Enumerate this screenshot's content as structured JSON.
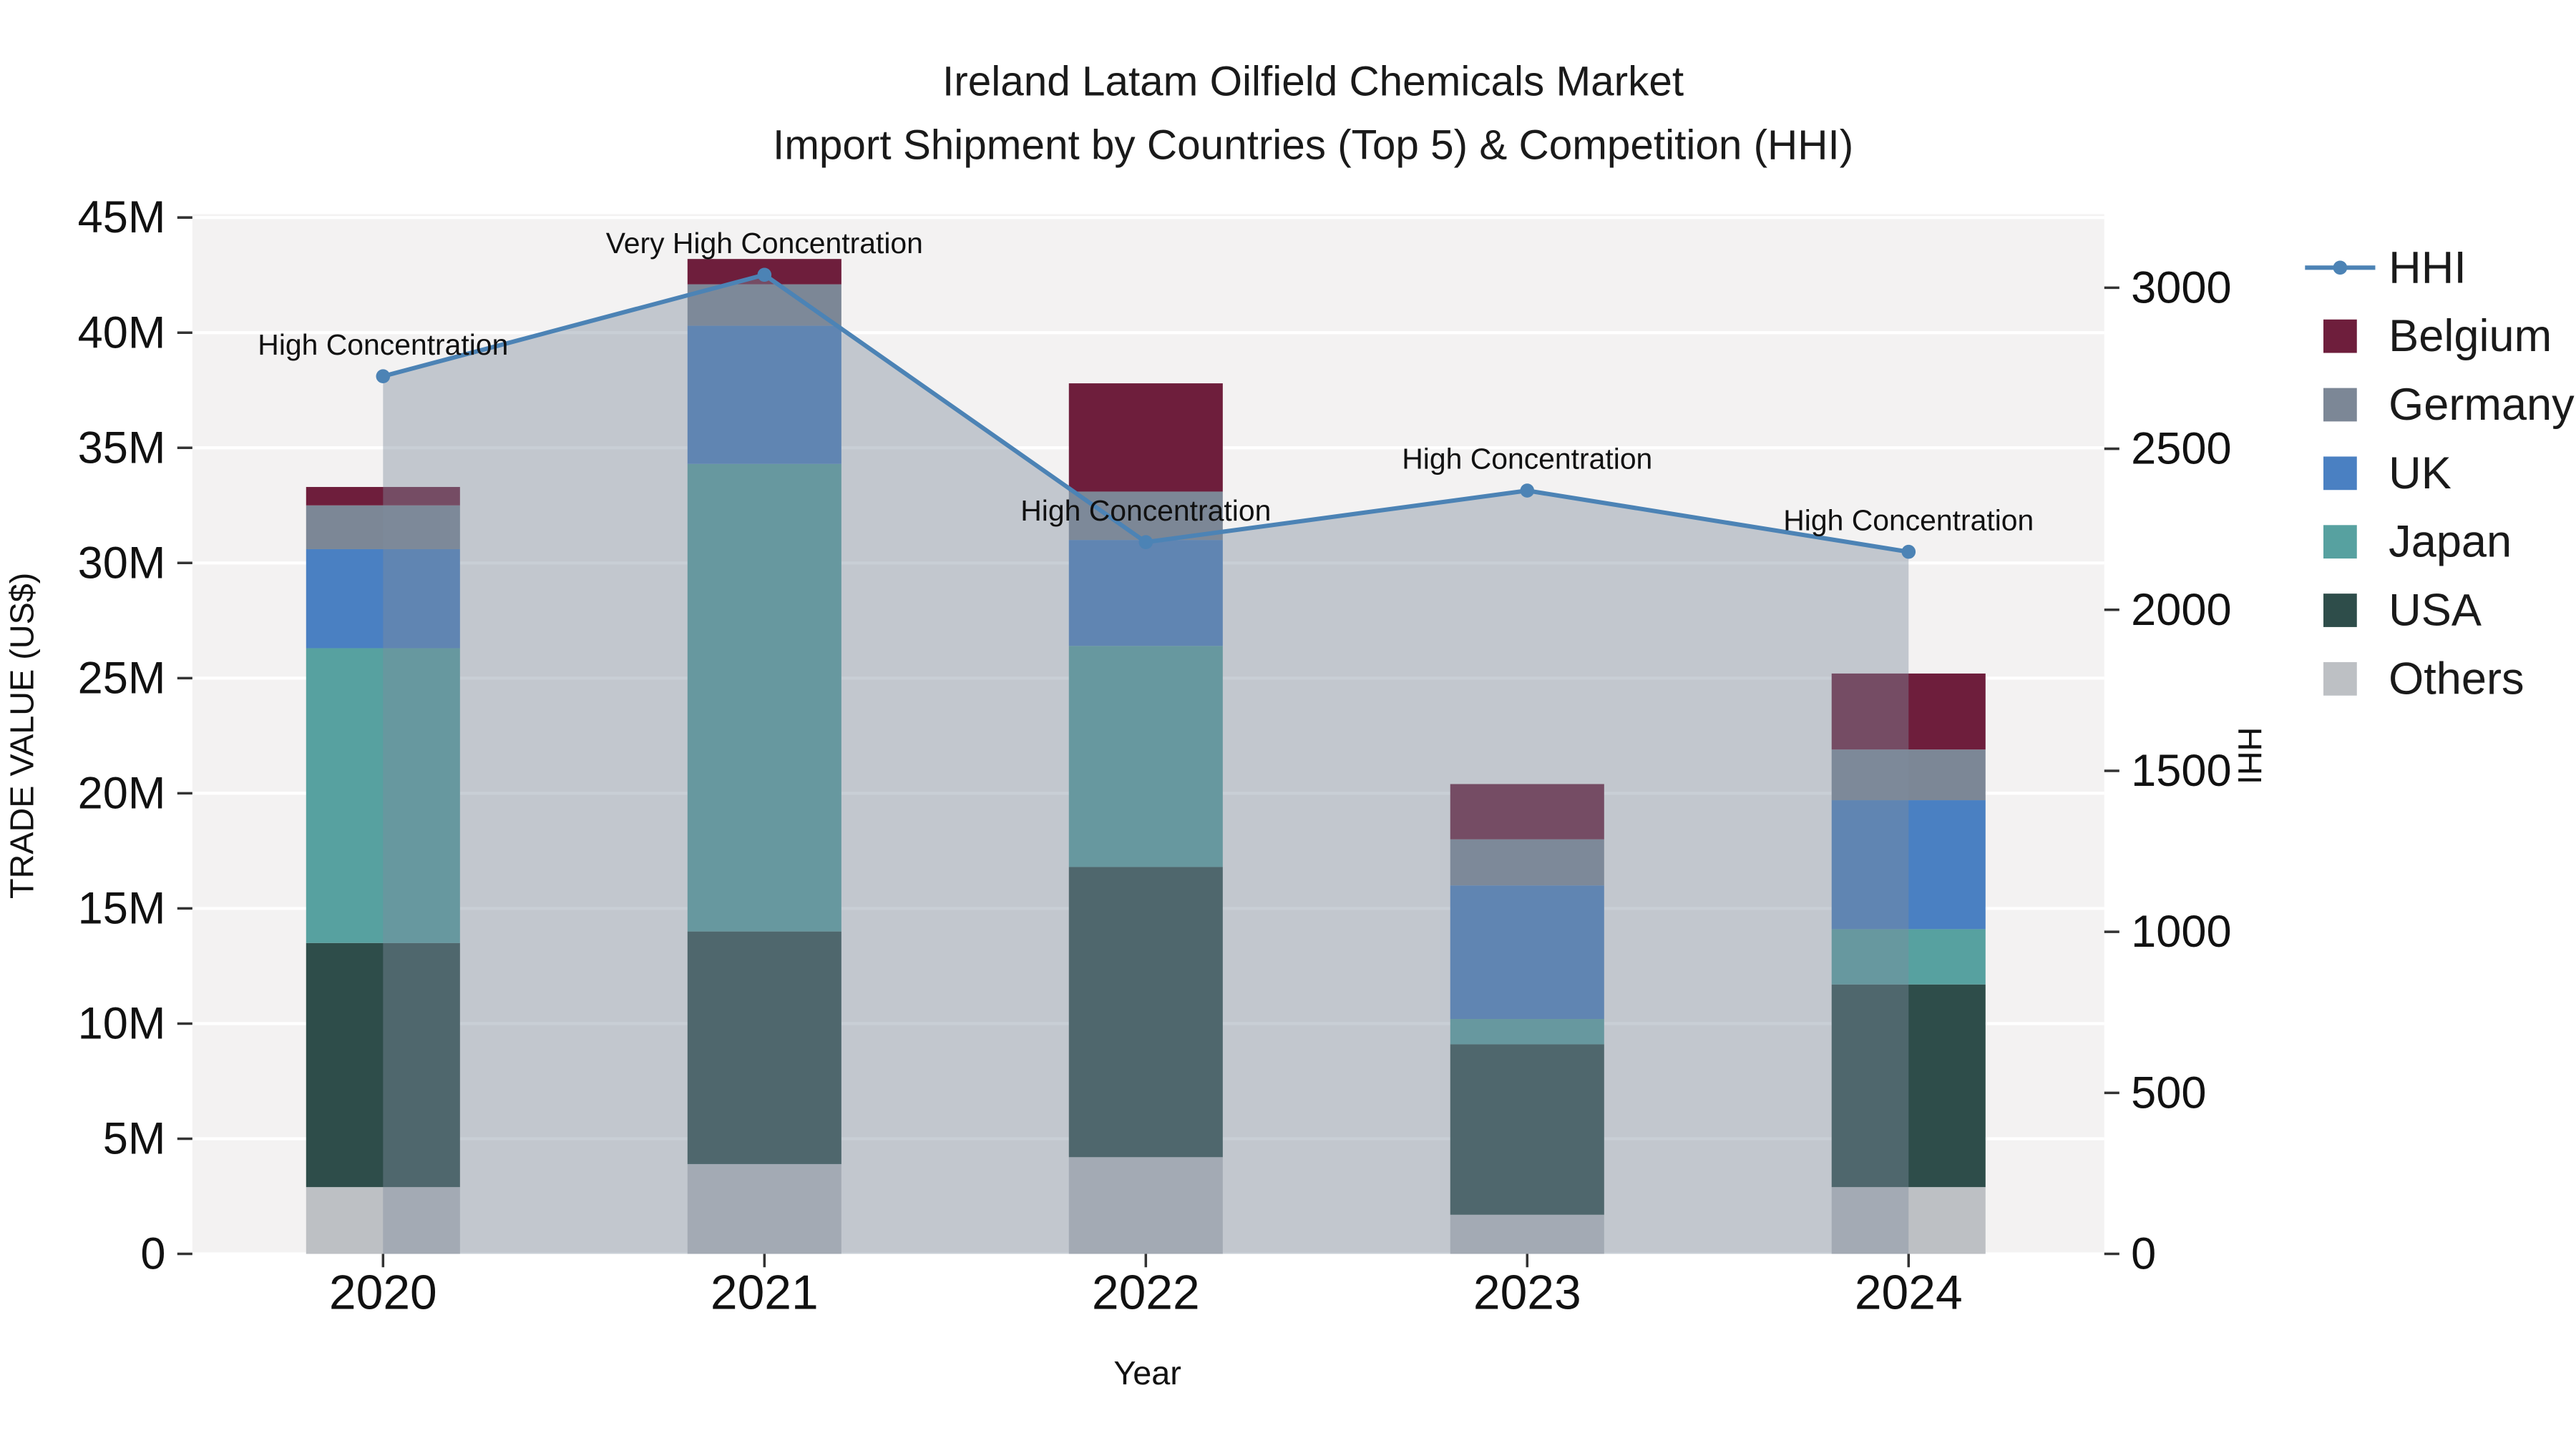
{
  "page": {
    "background": "#ffffff"
  },
  "chart_data": {
    "type": "stacked-bar+line-dual-axis",
    "title": "Ireland Latam Oilfield Chemicals Market",
    "subtitle": "Import Shipment by Countries (Top 5) & Competition (HHI)",
    "xlabel": "Year",
    "ylabel_left": "TRADE VALUE (US$)",
    "ylabel_right": "HHI",
    "unit_left": "USD millions",
    "categories": [
      "2020",
      "2021",
      "2022",
      "2023",
      "2024"
    ],
    "series": [
      {
        "name": "Others",
        "color": "#bdc0c4",
        "values": [
          2.9,
          3.9,
          4.2,
          1.7,
          2.9
        ]
      },
      {
        "name": "USA",
        "color": "#2e4d4a",
        "values": [
          10.6,
          10.1,
          12.6,
          7.4,
          8.8
        ]
      },
      {
        "name": "Japan",
        "color": "#57a1a0",
        "values": [
          12.8,
          20.3,
          9.6,
          1.1,
          2.4
        ]
      },
      {
        "name": "UK",
        "color": "#4a80c2",
        "values": [
          4.3,
          6.0,
          4.6,
          5.8,
          5.6
        ]
      },
      {
        "name": "Germany",
        "color": "#7c8796",
        "values": [
          1.9,
          1.8,
          2.1,
          2.0,
          2.2
        ]
      },
      {
        "name": "Belgium",
        "color": "#6e1e3c",
        "values": [
          0.8,
          1.1,
          4.7,
          2.4,
          3.3
        ]
      }
    ],
    "totals": [
      33.3,
      43.2,
      37.8,
      20.4,
      25.2
    ],
    "line": {
      "name": "HHI",
      "color": "#4c83b5",
      "area_fill": "rgba(127,140,157,0.42)",
      "values": [
        2725,
        3040,
        2210,
        2370,
        2180
      ],
      "annotations": [
        "High Concentration",
        "Very High Concentration",
        "High Concentration",
        "High Concentration",
        "High Concentration"
      ]
    },
    "axes": {
      "left": {
        "max": 45,
        "ticks": [
          {
            "v": 45,
            "label": "45M"
          },
          {
            "v": 40,
            "label": "40M"
          },
          {
            "v": 35,
            "label": "35M"
          },
          {
            "v": 30,
            "label": "30M"
          },
          {
            "v": 25,
            "label": "25M"
          },
          {
            "v": 20,
            "label": "20M"
          },
          {
            "v": 15,
            "label": "15M"
          },
          {
            "v": 10,
            "label": "10M"
          },
          {
            "v": 5,
            "label": "5M"
          },
          {
            "v": 0,
            "label": "0"
          }
        ]
      },
      "right": {
        "max": 3000,
        "ticks": [
          {
            "v": 3000,
            "label": "3000"
          },
          {
            "v": 2500,
            "label": "2500"
          },
          {
            "v": 2000,
            "label": "2000"
          },
          {
            "v": 1500,
            "label": "1500"
          },
          {
            "v": 1000,
            "label": "1000"
          },
          {
            "v": 500,
            "label": "500"
          },
          {
            "v": 0,
            "label": "0"
          }
        ]
      }
    },
    "legend": {
      "items": [
        {
          "name": "HHI",
          "type": "line",
          "color": "#4c83b5"
        },
        {
          "name": "Belgium",
          "type": "square",
          "color": "#6e1e3c"
        },
        {
          "name": "Germany",
          "type": "square",
          "color": "#7c8796"
        },
        {
          "name": "UK",
          "type": "square",
          "color": "#4a80c2"
        },
        {
          "name": "Japan",
          "type": "square",
          "color": "#57a1a0"
        },
        {
          "name": "USA",
          "type": "square",
          "color": "#2e4d4a"
        },
        {
          "name": "Others",
          "type": "square",
          "color": "#bdc0c4"
        }
      ]
    },
    "plot_bg": "#f3f2f2",
    "grid_color": "#ffffff"
  }
}
